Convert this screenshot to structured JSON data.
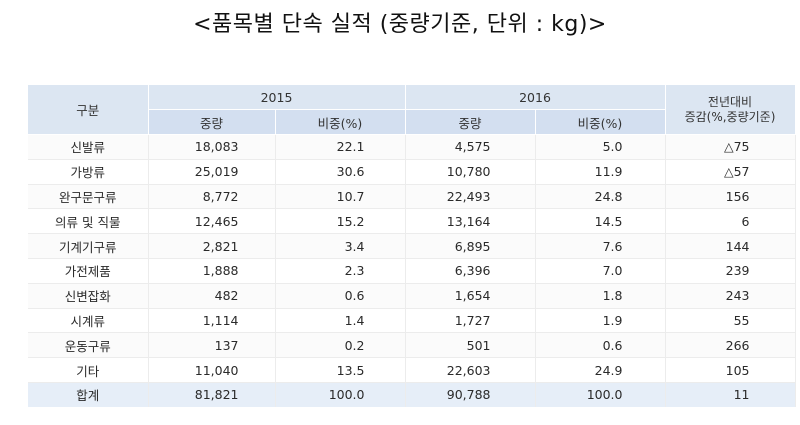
{
  "title": "<품목별 단속 실적 (중량기준, 단위 : kg)>",
  "table": {
    "header": {
      "category": "구분",
      "year1": "2015",
      "year2": "2016",
      "change_line1": "전년대비",
      "change_line2": "증감(%,중량기준)",
      "weight": "중량",
      "share": "비중(%)"
    },
    "rows": [
      {
        "category": "신발류",
        "w2015": "18,083",
        "s2015": "22.1",
        "w2016": "4,575",
        "s2016": "5.0",
        "change": "△75"
      },
      {
        "category": "가방류",
        "w2015": "25,019",
        "s2015": "30.6",
        "w2016": "10,780",
        "s2016": "11.9",
        "change": "△57"
      },
      {
        "category": "완구문구류",
        "w2015": "8,772",
        "s2015": "10.7",
        "w2016": "22,493",
        "s2016": "24.8",
        "change": "156"
      },
      {
        "category": "의류 및 직물",
        "w2015": "12,465",
        "s2015": "15.2",
        "w2016": "13,164",
        "s2016": "14.5",
        "change": "6"
      },
      {
        "category": "기계기구류",
        "w2015": "2,821",
        "s2015": "3.4",
        "w2016": "6,895",
        "s2016": "7.6",
        "change": "144"
      },
      {
        "category": "가전제품",
        "w2015": "1,888",
        "s2015": "2.3",
        "w2016": "6,396",
        "s2016": "7.0",
        "change": "239"
      },
      {
        "category": "신변잡화",
        "w2015": "482",
        "s2015": "0.6",
        "w2016": "1,654",
        "s2016": "1.8",
        "change": "243"
      },
      {
        "category": "시계류",
        "w2015": "1,114",
        "s2015": "1.4",
        "w2016": "1,727",
        "s2016": "1.9",
        "change": "55"
      },
      {
        "category": "운동구류",
        "w2015": "137",
        "s2015": "0.2",
        "w2016": "501",
        "s2016": "0.6",
        "change": "266"
      },
      {
        "category": "기타",
        "w2015": "11,040",
        "s2015": "13.5",
        "w2016": "22,603",
        "s2016": "24.9",
        "change": "105"
      }
    ],
    "total": {
      "category": "합계",
      "w2015": "81,821",
      "s2015": "100.0",
      "w2016": "90,788",
      "s2016": "100.0",
      "change": "11"
    }
  },
  "colors": {
    "header_bg": "#dce6f2",
    "total_bg": "#e6eef8"
  }
}
